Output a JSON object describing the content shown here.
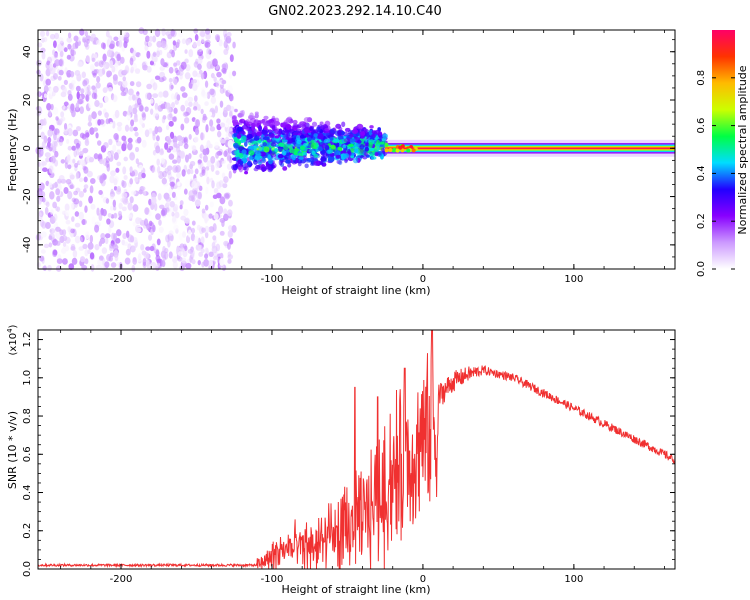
{
  "title": "GN02.2023.292.14.10.C40",
  "chart_data": [
    {
      "type": "heatmap",
      "description_kind": "spectrogram",
      "xlabel": "Height of straight line (km)",
      "ylabel": "Frequency (Hz)",
      "xlim": [
        -255,
        167
      ],
      "ylim": [
        -50,
        49
      ],
      "xticks": [
        -200,
        -100,
        0,
        100
      ],
      "xtick_labels": [
        "-200",
        "-100",
        "0",
        "100"
      ],
      "yticks": [
        -40,
        -20,
        0,
        20,
        40
      ],
      "ytick_labels": [
        "-40",
        "-20",
        "0",
        "20",
        "40"
      ],
      "regions": [
        {
          "name": "noise",
          "x": [
            -255,
            -125
          ],
          "freq_spread": [
            -50,
            49
          ],
          "amplitude": [
            0.0,
            0.15
          ]
        },
        {
          "name": "scatter",
          "x": [
            -125,
            -25
          ],
          "freq_spread": [
            -14,
            14
          ],
          "amplitude": [
            0.05,
            0.55
          ]
        },
        {
          "name": "coherent-line",
          "x": [
            -25,
            167
          ],
          "freq_center": 0,
          "amplitude": [
            0.8,
            1.0
          ]
        }
      ],
      "colorbar": {
        "label": "Normalized spectral amplitude",
        "range": [
          0,
          1
        ],
        "ticks": [
          0.0,
          0.2,
          0.4,
          0.6,
          0.8
        ],
        "tick_labels": [
          "0.0",
          "0.2",
          "0.4",
          "0.6",
          "0.8"
        ],
        "colors": [
          "#ffffff",
          "#cc99ff",
          "#8800ff",
          "#2200ff",
          "#00ddff",
          "#00ff44",
          "#ccff00",
          "#ffbb00",
          "#ff3300",
          "#ff0066"
        ]
      }
    },
    {
      "type": "line",
      "xlabel": "Height of straight line (km)",
      "ylabel": "SNR (10 * v/v)",
      "y_multiplier": "(x10",
      "y_multiplier_exp": "4",
      "y_multiplier_close": ")",
      "xlim": [
        -255,
        167
      ],
      "ylim": [
        0,
        1.25
      ],
      "xticks": [
        -200,
        -100,
        0,
        100
      ],
      "xtick_labels": [
        "-200",
        "-100",
        "0",
        "100"
      ],
      "yticks": [
        0.0,
        0.2,
        0.4,
        0.6,
        0.8,
        1.0,
        1.2
      ],
      "ytick_labels": [
        "0.0",
        "0.2",
        "0.4",
        "0.6",
        "0.8",
        "1.0",
        "1.2"
      ],
      "color": "#f03030",
      "series": [
        {
          "name": "SNR",
          "x": [
            -255,
            -200,
            -150,
            -110,
            -100,
            -90,
            -80,
            -70,
            -60,
            -50,
            -40,
            -30,
            -20,
            -10,
            -5,
            0,
            5,
            10,
            20,
            30,
            40,
            50,
            60,
            80,
            100,
            120,
            140,
            160,
            167
          ],
          "y": [
            0.02,
            0.02,
            0.02,
            0.02,
            0.08,
            0.14,
            0.13,
            0.16,
            0.2,
            0.26,
            0.34,
            0.45,
            0.62,
            0.68,
            0.74,
            0.84,
            0.88,
            0.9,
            0.98,
            1.02,
            1.04,
            1.02,
            1.0,
            0.92,
            0.84,
            0.76,
            0.68,
            0.6,
            0.57
          ]
        }
      ],
      "spikes": [
        {
          "x": -45,
          "y": 0.95
        },
        {
          "x": -30,
          "y": 0.9
        },
        {
          "x": -12,
          "y": 1.05
        },
        {
          "x": 6,
          "y": 1.25
        }
      ]
    }
  ]
}
